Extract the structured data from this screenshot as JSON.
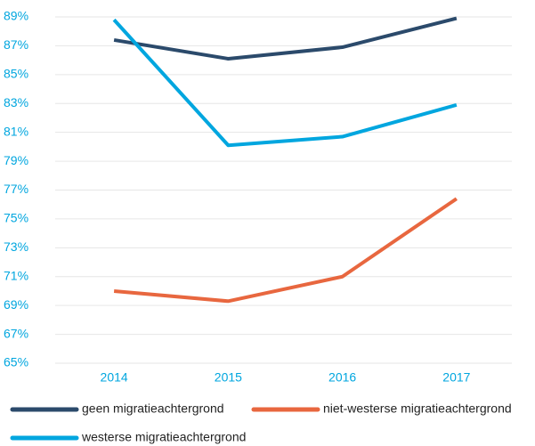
{
  "chart_data": {
    "type": "line",
    "categories": [
      "2014",
      "2015",
      "2016",
      "2017"
    ],
    "series": [
      {
        "name": "geen migratieachtergrond",
        "color": "#2b4a6b",
        "values": [
          87.4,
          86.1,
          86.9,
          88.9
        ]
      },
      {
        "name": "niet-westerse migratieachtergrond",
        "color": "#e8673f",
        "values": [
          70.0,
          69.3,
          71.0,
          76.4
        ]
      },
      {
        "name": "westerse migratieachtergrond",
        "color": "#00a6df",
        "values": [
          88.8,
          80.1,
          80.7,
          82.9
        ]
      }
    ],
    "ylim": [
      65,
      89
    ],
    "yticks": [
      {
        "value": 65,
        "label": "65%"
      },
      {
        "value": 67,
        "label": "67%"
      },
      {
        "value": 69,
        "label": "69%"
      },
      {
        "value": 71,
        "label": "71%"
      },
      {
        "value": 73,
        "label": "73%"
      },
      {
        "value": 75,
        "label": "75%"
      },
      {
        "value": 77,
        "label": "77%"
      },
      {
        "value": 79,
        "label": "79%"
      },
      {
        "value": 81,
        "label": "81%"
      },
      {
        "value": 83,
        "label": "83%"
      },
      {
        "value": 85,
        "label": "85%"
      },
      {
        "value": 87,
        "label": "87%"
      },
      {
        "value": 89,
        "label": "89%"
      }
    ],
    "grid": true
  }
}
